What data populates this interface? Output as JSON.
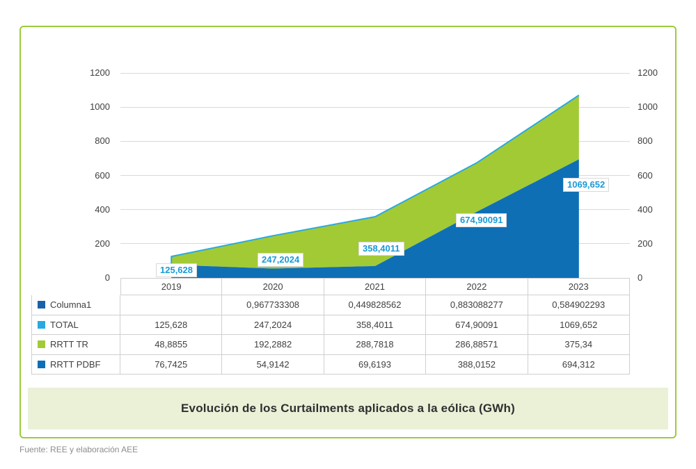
{
  "page": {
    "source_note": "Fuente: REE y elaboración AEE",
    "frame_border_color": "#9bcb3c"
  },
  "title_band": {
    "text": "Evolución de los Curtailments aplicados a la eólica (GWh)",
    "bg_color": "#eaf1d7",
    "text_color": "#2f2f2f"
  },
  "chart_data": {
    "type": "area",
    "stacked": true,
    "title": "Evolución de los Curtailments aplicados a la eólica (GWh)",
    "categories": [
      "2019",
      "2020",
      "2021",
      "2022",
      "2023"
    ],
    "series": [
      {
        "name": "RRTT PDBF",
        "type": "area",
        "color": "#0f6fb5",
        "values": [
          76.7425,
          54.9142,
          69.6193,
          388.0152,
          694.312
        ]
      },
      {
        "name": "RRTT TR",
        "type": "area",
        "color": "#a2ca35",
        "values": [
          48.8855,
          192.2882,
          288.7818,
          286.88571,
          375.34
        ]
      },
      {
        "name": "TOTAL",
        "type": "line",
        "color": "#29a9e0",
        "values": [
          125.628,
          247.2024,
          358.4011,
          674.90091,
          1069.652
        ]
      },
      {
        "name": "Columna1",
        "type": "area",
        "color": "#1b61a8",
        "values": [
          null,
          0.967733308,
          0.449828562,
          0.883088277,
          0.584902293
        ]
      }
    ],
    "data_labels": {
      "series": "TOTAL",
      "text_color": "#199ad6",
      "values": [
        "125,628",
        "247,2024",
        "358,4011",
        "674,90091",
        "1069,652"
      ]
    },
    "ylim": [
      0,
      1200
    ],
    "yticks": [
      "1200",
      "1000",
      "800",
      "600",
      "400",
      "200",
      "0"
    ],
    "y_axis_sides": "both",
    "grid": true,
    "grid_color": "#d9d9d9",
    "tick_color": "#3d3d3d",
    "legend_position": "table-left"
  },
  "table": {
    "columns": [
      "2019",
      "2020",
      "2021",
      "2022",
      "2023"
    ],
    "rows": [
      {
        "label": "Columna1",
        "swatch": "#1b61a8",
        "values": [
          "",
          "0,967733308",
          "0,449828562",
          "0,883088277",
          "0,584902293"
        ]
      },
      {
        "label": "TOTAL",
        "swatch": "#29a9e0",
        "values": [
          "125,628",
          "247,2024",
          "358,4011",
          "674,90091",
          "1069,652"
        ]
      },
      {
        "label": "RRTT TR",
        "swatch": "#a2ca35",
        "values": [
          "48,8855",
          "192,2882",
          "288,7818",
          "286,88571",
          "375,34"
        ]
      },
      {
        "label": "RRTT PDBF",
        "swatch": "#0f6fb5",
        "values": [
          "76,7425",
          "54,9142",
          "69,6193",
          "388,0152",
          "694,312"
        ]
      }
    ]
  }
}
